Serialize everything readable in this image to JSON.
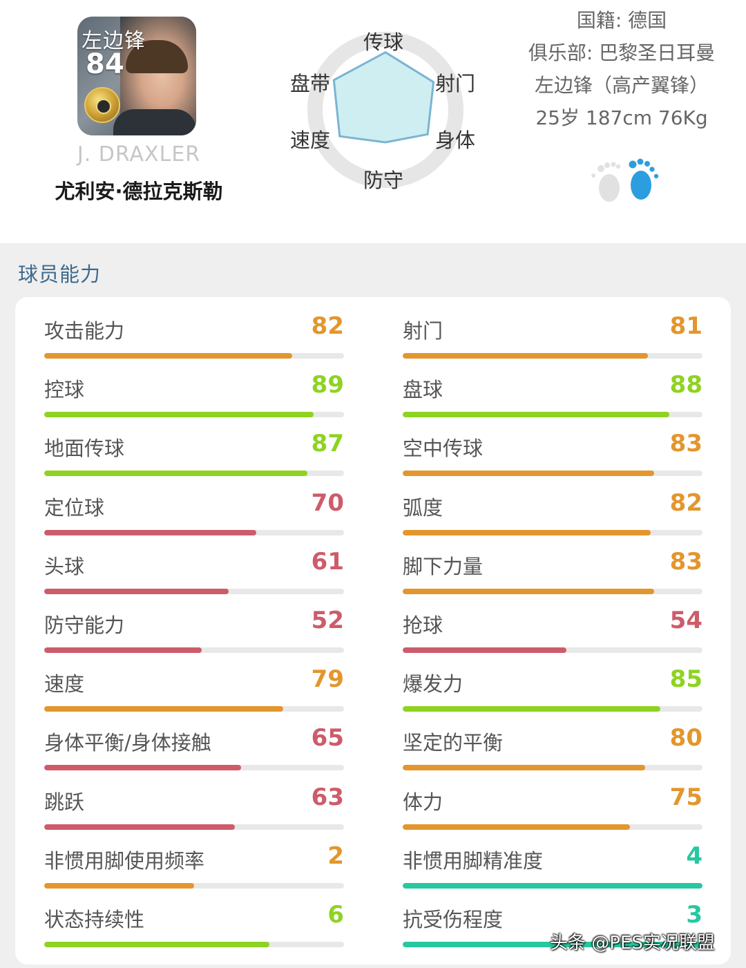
{
  "player": {
    "position": "左边锋",
    "overall": "84",
    "name_en": "J. DRAXLER",
    "name_cn": "尤利安·德拉克斯勒"
  },
  "radar": {
    "labels": {
      "pass": "传球",
      "shoot": "射门",
      "physical": "身体",
      "defense": "防守",
      "speed": "速度",
      "dribble": "盘带"
    },
    "values": {
      "pass": 0.85,
      "shoot": 0.82,
      "physical": 0.72,
      "defense": 0.48,
      "speed": 0.78,
      "dribble": 0.88
    },
    "colors": {
      "fill": "#cfeef2",
      "stroke": "#7ab4d4",
      "ring": "#e6e6e6"
    }
  },
  "info": {
    "nationality": "国籍: 德国",
    "club": "俱乐部: 巴黎圣日耳曼",
    "playstyle": "左边锋（高产翼锋）",
    "body": "25岁 187cm 76Kg"
  },
  "feet": {
    "left_icon": "left-foot-icon",
    "right_icon": "right-foot-icon",
    "preferred": "right"
  },
  "section_title": "球员能力",
  "colors": {
    "green": "#8ed321",
    "orange": "#e3962d",
    "red": "#cd5c6b",
    "teal": "#27c7a0"
  },
  "stats_left": [
    {
      "label": "攻击能力",
      "value": "82",
      "color": "orange"
    },
    {
      "label": "控球",
      "value": "89",
      "color": "green"
    },
    {
      "label": "地面传球",
      "value": "87",
      "color": "green"
    },
    {
      "label": "定位球",
      "value": "70",
      "color": "red"
    },
    {
      "label": "头球",
      "value": "61",
      "color": "red"
    },
    {
      "label": "防守能力",
      "value": "52",
      "color": "red"
    },
    {
      "label": "速度",
      "value": "79",
      "color": "orange"
    },
    {
      "label": "身体平衡/身体接触",
      "value": "65",
      "color": "red"
    },
    {
      "label": "跳跃",
      "value": "63",
      "color": "red"
    },
    {
      "label": "非惯用脚使用频率",
      "value": "2",
      "color": "orange",
      "fraction": 0.5
    },
    {
      "label": "状态持续性",
      "value": "6",
      "color": "green",
      "fraction": 0.75
    }
  ],
  "stats_right": [
    {
      "label": "射门",
      "value": "81",
      "color": "orange"
    },
    {
      "label": "盘球",
      "value": "88",
      "color": "green"
    },
    {
      "label": "空中传球",
      "value": "83",
      "color": "orange"
    },
    {
      "label": "弧度",
      "value": "82",
      "color": "orange"
    },
    {
      "label": "脚下力量",
      "value": "83",
      "color": "orange"
    },
    {
      "label": "抢球",
      "value": "54",
      "color": "red"
    },
    {
      "label": "爆发力",
      "value": "85",
      "color": "green"
    },
    {
      "label": "坚定的平衡",
      "value": "80",
      "color": "orange"
    },
    {
      "label": "体力",
      "value": "75",
      "color": "orange"
    },
    {
      "label": "非惯用脚精准度",
      "value": "4",
      "color": "teal",
      "fraction": 1.0
    },
    {
      "label": "抗受伤程度",
      "value": "3",
      "color": "teal",
      "fraction": 1.0
    }
  ],
  "watermark": "头条 @PES实况联盟"
}
